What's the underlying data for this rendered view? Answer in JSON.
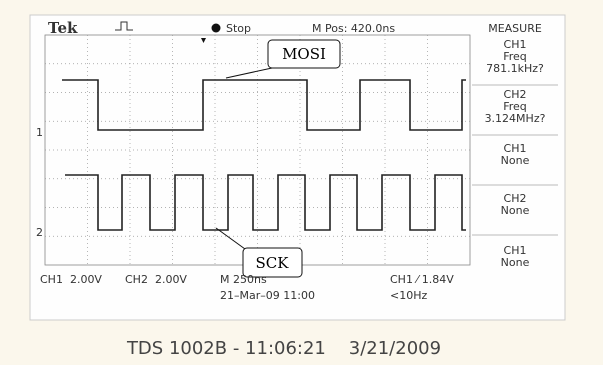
{
  "header": {
    "brand": "Tek",
    "state": "Stop",
    "position": "M Pos: 420.0ns",
    "menu_title": "MEASURE"
  },
  "menu": [
    [
      "CH1",
      "Freq",
      "781.1kHz?"
    ],
    [
      "CH2",
      "Freq",
      "3.124MHz?"
    ],
    [
      "CH1",
      "None"
    ],
    [
      "CH2",
      "None"
    ],
    [
      "CH1",
      "None"
    ]
  ],
  "markers": {
    "ch1": "1",
    "ch2": "2"
  },
  "callouts": {
    "mosi": "MOSI",
    "sck": "SCK"
  },
  "status": {
    "ch1_scale": "CH1  2.00V",
    "ch2_scale": "CH2  2.00V",
    "timebase": "M 250ns",
    "date": "21–Mar–09 11:00",
    "trigger": "CH1 ⁄ 1.84V",
    "freq": "<10Hz"
  },
  "footer": "TDS 1002B - 11:06:21    3/21/2009"
}
